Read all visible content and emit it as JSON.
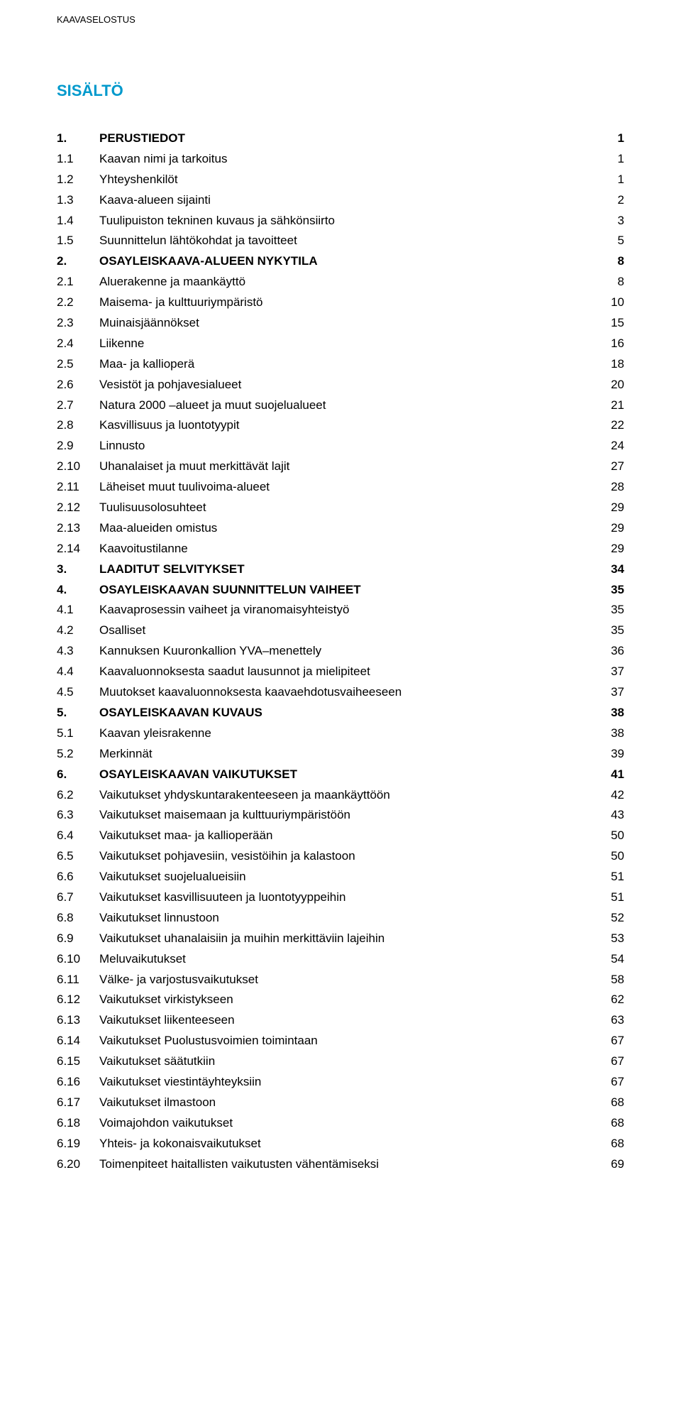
{
  "header": "KAAVASELOSTUS",
  "title": "SISÄLTÖ",
  "toc": [
    {
      "num": "1.",
      "label": "PERUSTIEDOT",
      "page": "1",
      "bold": true
    },
    {
      "num": "1.1",
      "label": "Kaavan nimi ja tarkoitus",
      "page": "1",
      "bold": false
    },
    {
      "num": "1.2",
      "label": "Yhteyshenkilöt",
      "page": "1",
      "bold": false
    },
    {
      "num": "1.3",
      "label": "Kaava-alueen sijainti",
      "page": "2",
      "bold": false
    },
    {
      "num": "1.4",
      "label": "Tuulipuiston tekninen kuvaus ja sähkönsiirto",
      "page": "3",
      "bold": false
    },
    {
      "num": "1.5",
      "label": "Suunnittelun lähtökohdat ja tavoitteet",
      "page": "5",
      "bold": false
    },
    {
      "num": "2.",
      "label": "OSAYLEISKAAVA-ALUEEN NYKYTILA",
      "page": "8",
      "bold": true
    },
    {
      "num": "2.1",
      "label": "Aluerakenne ja maankäyttö",
      "page": "8",
      "bold": false
    },
    {
      "num": "2.2",
      "label": "Maisema- ja kulttuuriympäristö",
      "page": "10",
      "bold": false
    },
    {
      "num": "2.3",
      "label": "Muinaisjäännökset",
      "page": "15",
      "bold": false
    },
    {
      "num": "2.4",
      "label": "Liikenne",
      "page": "16",
      "bold": false
    },
    {
      "num": "2.5",
      "label": "Maa- ja kallioperä",
      "page": "18",
      "bold": false
    },
    {
      "num": "2.6",
      "label": "Vesistöt ja pohjavesialueet",
      "page": "20",
      "bold": false
    },
    {
      "num": "2.7",
      "label": "Natura 2000 –alueet ja muut suojelualueet",
      "page": "21",
      "bold": false
    },
    {
      "num": "2.8",
      "label": "Kasvillisuus ja luontotyypit",
      "page": "22",
      "bold": false
    },
    {
      "num": "2.9",
      "label": "Linnusto",
      "page": "24",
      "bold": false
    },
    {
      "num": "2.10",
      "label": "Uhanalaiset ja muut merkittävät lajit",
      "page": "27",
      "bold": false
    },
    {
      "num": "2.11",
      "label": "Läheiset muut tuulivoima-alueet",
      "page": "28",
      "bold": false
    },
    {
      "num": "2.12",
      "label": "Tuulisuusolosuhteet",
      "page": "29",
      "bold": false
    },
    {
      "num": "2.13",
      "label": "Maa-alueiden omistus",
      "page": "29",
      "bold": false
    },
    {
      "num": "2.14",
      "label": "Kaavoitustilanne",
      "page": "29",
      "bold": false
    },
    {
      "num": "3.",
      "label": "LAADITUT SELVITYKSET",
      "page": "34",
      "bold": true
    },
    {
      "num": "4.",
      "label": "OSAYLEISKAAVAN SUUNNITTELUN VAIHEET",
      "page": "35",
      "bold": true
    },
    {
      "num": "4.1",
      "label": "Kaavaprosessin vaiheet ja viranomaisyhteistyö",
      "page": "35",
      "bold": false
    },
    {
      "num": "4.2",
      "label": "Osalliset",
      "page": "35",
      "bold": false
    },
    {
      "num": "4.3",
      "label": "Kannuksen Kuuronkallion YVA–menettely",
      "page": "36",
      "bold": false
    },
    {
      "num": "4.4",
      "label": "Kaavaluonnoksesta saadut lausunnot ja mielipiteet",
      "page": "37",
      "bold": false
    },
    {
      "num": "4.5",
      "label": "Muutokset kaavaluonnoksesta kaavaehdotusvaiheeseen",
      "page": "37",
      "bold": false
    },
    {
      "num": "5.",
      "label": "OSAYLEISKAAVAN KUVAUS",
      "page": "38",
      "bold": true
    },
    {
      "num": "5.1",
      "label": "Kaavan yleisrakenne",
      "page": "38",
      "bold": false
    },
    {
      "num": "5.2",
      "label": "Merkinnät",
      "page": "39",
      "bold": false
    },
    {
      "num": "6.",
      "label": "OSAYLEISKAAVAN VAIKUTUKSET",
      "page": "41",
      "bold": true
    },
    {
      "num": "6.2",
      "label": "Vaikutukset yhdyskuntarakenteeseen ja maankäyttöön",
      "page": "42",
      "bold": false
    },
    {
      "num": "6.3",
      "label": "Vaikutukset maisemaan ja kulttuuriympäristöön",
      "page": "43",
      "bold": false
    },
    {
      "num": "6.4",
      "label": "Vaikutukset maa- ja kallioperään",
      "page": "50",
      "bold": false
    },
    {
      "num": "6.5",
      "label": "Vaikutukset pohjavesiin, vesistöihin ja kalastoon",
      "page": "50",
      "bold": false
    },
    {
      "num": "6.6",
      "label": "Vaikutukset suojelualueisiin",
      "page": "51",
      "bold": false
    },
    {
      "num": "6.7",
      "label": "Vaikutukset kasvillisuuteen ja luontotyyppeihin",
      "page": "51",
      "bold": false
    },
    {
      "num": "6.8",
      "label": "Vaikutukset linnustoon",
      "page": "52",
      "bold": false
    },
    {
      "num": "6.9",
      "label": "Vaikutukset uhanalaisiin ja muihin merkittäviin lajeihin",
      "page": "53",
      "bold": false
    },
    {
      "num": "6.10",
      "label": "Meluvaikutukset",
      "page": "54",
      "bold": false
    },
    {
      "num": "6.11",
      "label": "Välke- ja varjostusvaikutukset",
      "page": "58",
      "bold": false
    },
    {
      "num": "6.12",
      "label": "Vaikutukset virkistykseen",
      "page": "62",
      "bold": false
    },
    {
      "num": "6.13",
      "label": "Vaikutukset liikenteeseen",
      "page": "63",
      "bold": false
    },
    {
      "num": "6.14",
      "label": "Vaikutukset Puolustusvoimien toimintaan",
      "page": "67",
      "bold": false
    },
    {
      "num": "6.15",
      "label": "Vaikutukset säätutkiin",
      "page": "67",
      "bold": false
    },
    {
      "num": "6.16",
      "label": "Vaikutukset viestintäyhteyksiin",
      "page": "67",
      "bold": false
    },
    {
      "num": "6.17",
      "label": "Vaikutukset ilmastoon",
      "page": "68",
      "bold": false
    },
    {
      "num": "6.18",
      "label": "Voimajohdon vaikutukset",
      "page": "68",
      "bold": false
    },
    {
      "num": "6.19",
      "label": "Yhteis- ja kokonaisvaikutukset",
      "page": "68",
      "bold": false
    },
    {
      "num": "6.20",
      "label": "Toimenpiteet haitallisten vaikutusten vähentämiseksi",
      "page": "69",
      "bold": false
    }
  ]
}
